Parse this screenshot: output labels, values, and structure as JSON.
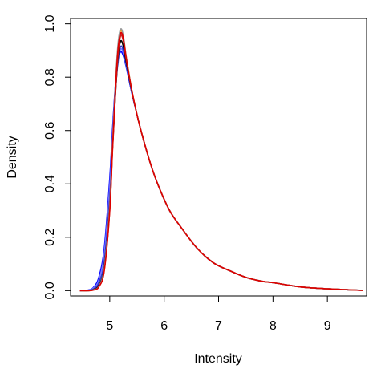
{
  "chart_data": {
    "type": "line",
    "xlabel": "Intensity",
    "ylabel": "Density",
    "xlim": [
      4.28,
      9.72
    ],
    "ylim": [
      -0.02,
      1.02
    ],
    "x_ticks": [
      5,
      6,
      7,
      8,
      9
    ],
    "y_ticks": [
      0.0,
      0.2,
      0.4,
      0.6,
      0.8,
      1.0
    ],
    "x_tick_labels": [
      "5",
      "6",
      "7",
      "8",
      "9"
    ],
    "y_tick_labels": [
      "0.0",
      "0.2",
      "0.4",
      "0.6",
      "0.8",
      "1.0"
    ],
    "grid": false,
    "legend": "none",
    "curve_x": [
      4.45,
      4.6,
      4.7,
      4.8,
      4.9,
      5.0,
      5.05,
      5.1,
      5.15,
      5.2,
      5.25,
      5.3,
      5.4,
      5.5,
      5.6,
      5.75,
      5.9,
      6.1,
      6.3,
      6.6,
      6.9,
      7.2,
      7.5,
      7.8,
      8.0,
      8.3,
      8.6,
      9.0,
      9.3,
      9.65
    ],
    "series": [
      {
        "color": "#0000ff",
        "values": [
          0.0,
          0.002,
          0.012,
          0.05,
          0.16,
          0.42,
          0.6,
          0.76,
          0.86,
          0.895,
          0.88,
          0.84,
          0.745,
          0.66,
          0.58,
          0.475,
          0.39,
          0.3,
          0.24,
          0.16,
          0.105,
          0.075,
          0.05,
          0.035,
          0.03,
          0.02,
          0.012,
          0.007,
          0.004,
          0.001
        ]
      },
      {
        "color": "#7777ff",
        "values": [
          0.0,
          0.001,
          0.01,
          0.04,
          0.14,
          0.39,
          0.57,
          0.74,
          0.85,
          0.905,
          0.89,
          0.845,
          0.748,
          0.66,
          0.58,
          0.475,
          0.39,
          0.3,
          0.24,
          0.16,
          0.105,
          0.075,
          0.05,
          0.035,
          0.03,
          0.02,
          0.012,
          0.007,
          0.004,
          0.001
        ]
      },
      {
        "color": "#3333cc",
        "values": [
          0.0,
          0.0,
          0.006,
          0.03,
          0.11,
          0.35,
          0.55,
          0.73,
          0.86,
          0.915,
          0.9,
          0.85,
          0.75,
          0.66,
          0.58,
          0.475,
          0.39,
          0.3,
          0.24,
          0.16,
          0.105,
          0.075,
          0.05,
          0.035,
          0.03,
          0.02,
          0.012,
          0.007,
          0.004,
          0.001
        ]
      },
      {
        "color": "#000000",
        "values": [
          0.0,
          0.0,
          0.004,
          0.02,
          0.09,
          0.32,
          0.53,
          0.72,
          0.87,
          0.935,
          0.915,
          0.86,
          0.752,
          0.66,
          0.58,
          0.475,
          0.39,
          0.3,
          0.24,
          0.16,
          0.105,
          0.075,
          0.05,
          0.035,
          0.03,
          0.02,
          0.012,
          0.007,
          0.004,
          0.001
        ]
      },
      {
        "color": "#cc2222",
        "values": [
          0.0,
          0.0,
          0.003,
          0.016,
          0.08,
          0.3,
          0.52,
          0.72,
          0.88,
          0.955,
          0.935,
          0.87,
          0.755,
          0.66,
          0.58,
          0.475,
          0.39,
          0.3,
          0.24,
          0.16,
          0.105,
          0.075,
          0.05,
          0.035,
          0.03,
          0.02,
          0.012,
          0.007,
          0.004,
          0.001
        ]
      },
      {
        "color": "#ff9900",
        "values": [
          0.0,
          0.0,
          0.003,
          0.015,
          0.08,
          0.31,
          0.54,
          0.75,
          0.91,
          0.975,
          0.95,
          0.88,
          0.757,
          0.66,
          0.58,
          0.475,
          0.39,
          0.3,
          0.24,
          0.16,
          0.105,
          0.075,
          0.05,
          0.035,
          0.03,
          0.02,
          0.012,
          0.007,
          0.004,
          0.001
        ]
      },
      {
        "color": "#999999",
        "values": [
          0.0,
          0.0,
          0.003,
          0.016,
          0.085,
          0.32,
          0.55,
          0.76,
          0.92,
          0.98,
          0.955,
          0.88,
          0.757,
          0.66,
          0.58,
          0.475,
          0.39,
          0.3,
          0.24,
          0.16,
          0.105,
          0.075,
          0.05,
          0.035,
          0.03,
          0.02,
          0.012,
          0.007,
          0.004,
          0.001
        ]
      },
      {
        "color": "#dd0000",
        "values": [
          0.0,
          0.0,
          0.002,
          0.014,
          0.075,
          0.3,
          0.53,
          0.74,
          0.9,
          0.965,
          0.945,
          0.875,
          0.756,
          0.66,
          0.58,
          0.475,
          0.39,
          0.3,
          0.24,
          0.16,
          0.105,
          0.075,
          0.05,
          0.035,
          0.03,
          0.02,
          0.012,
          0.007,
          0.004,
          0.001
        ]
      }
    ]
  }
}
